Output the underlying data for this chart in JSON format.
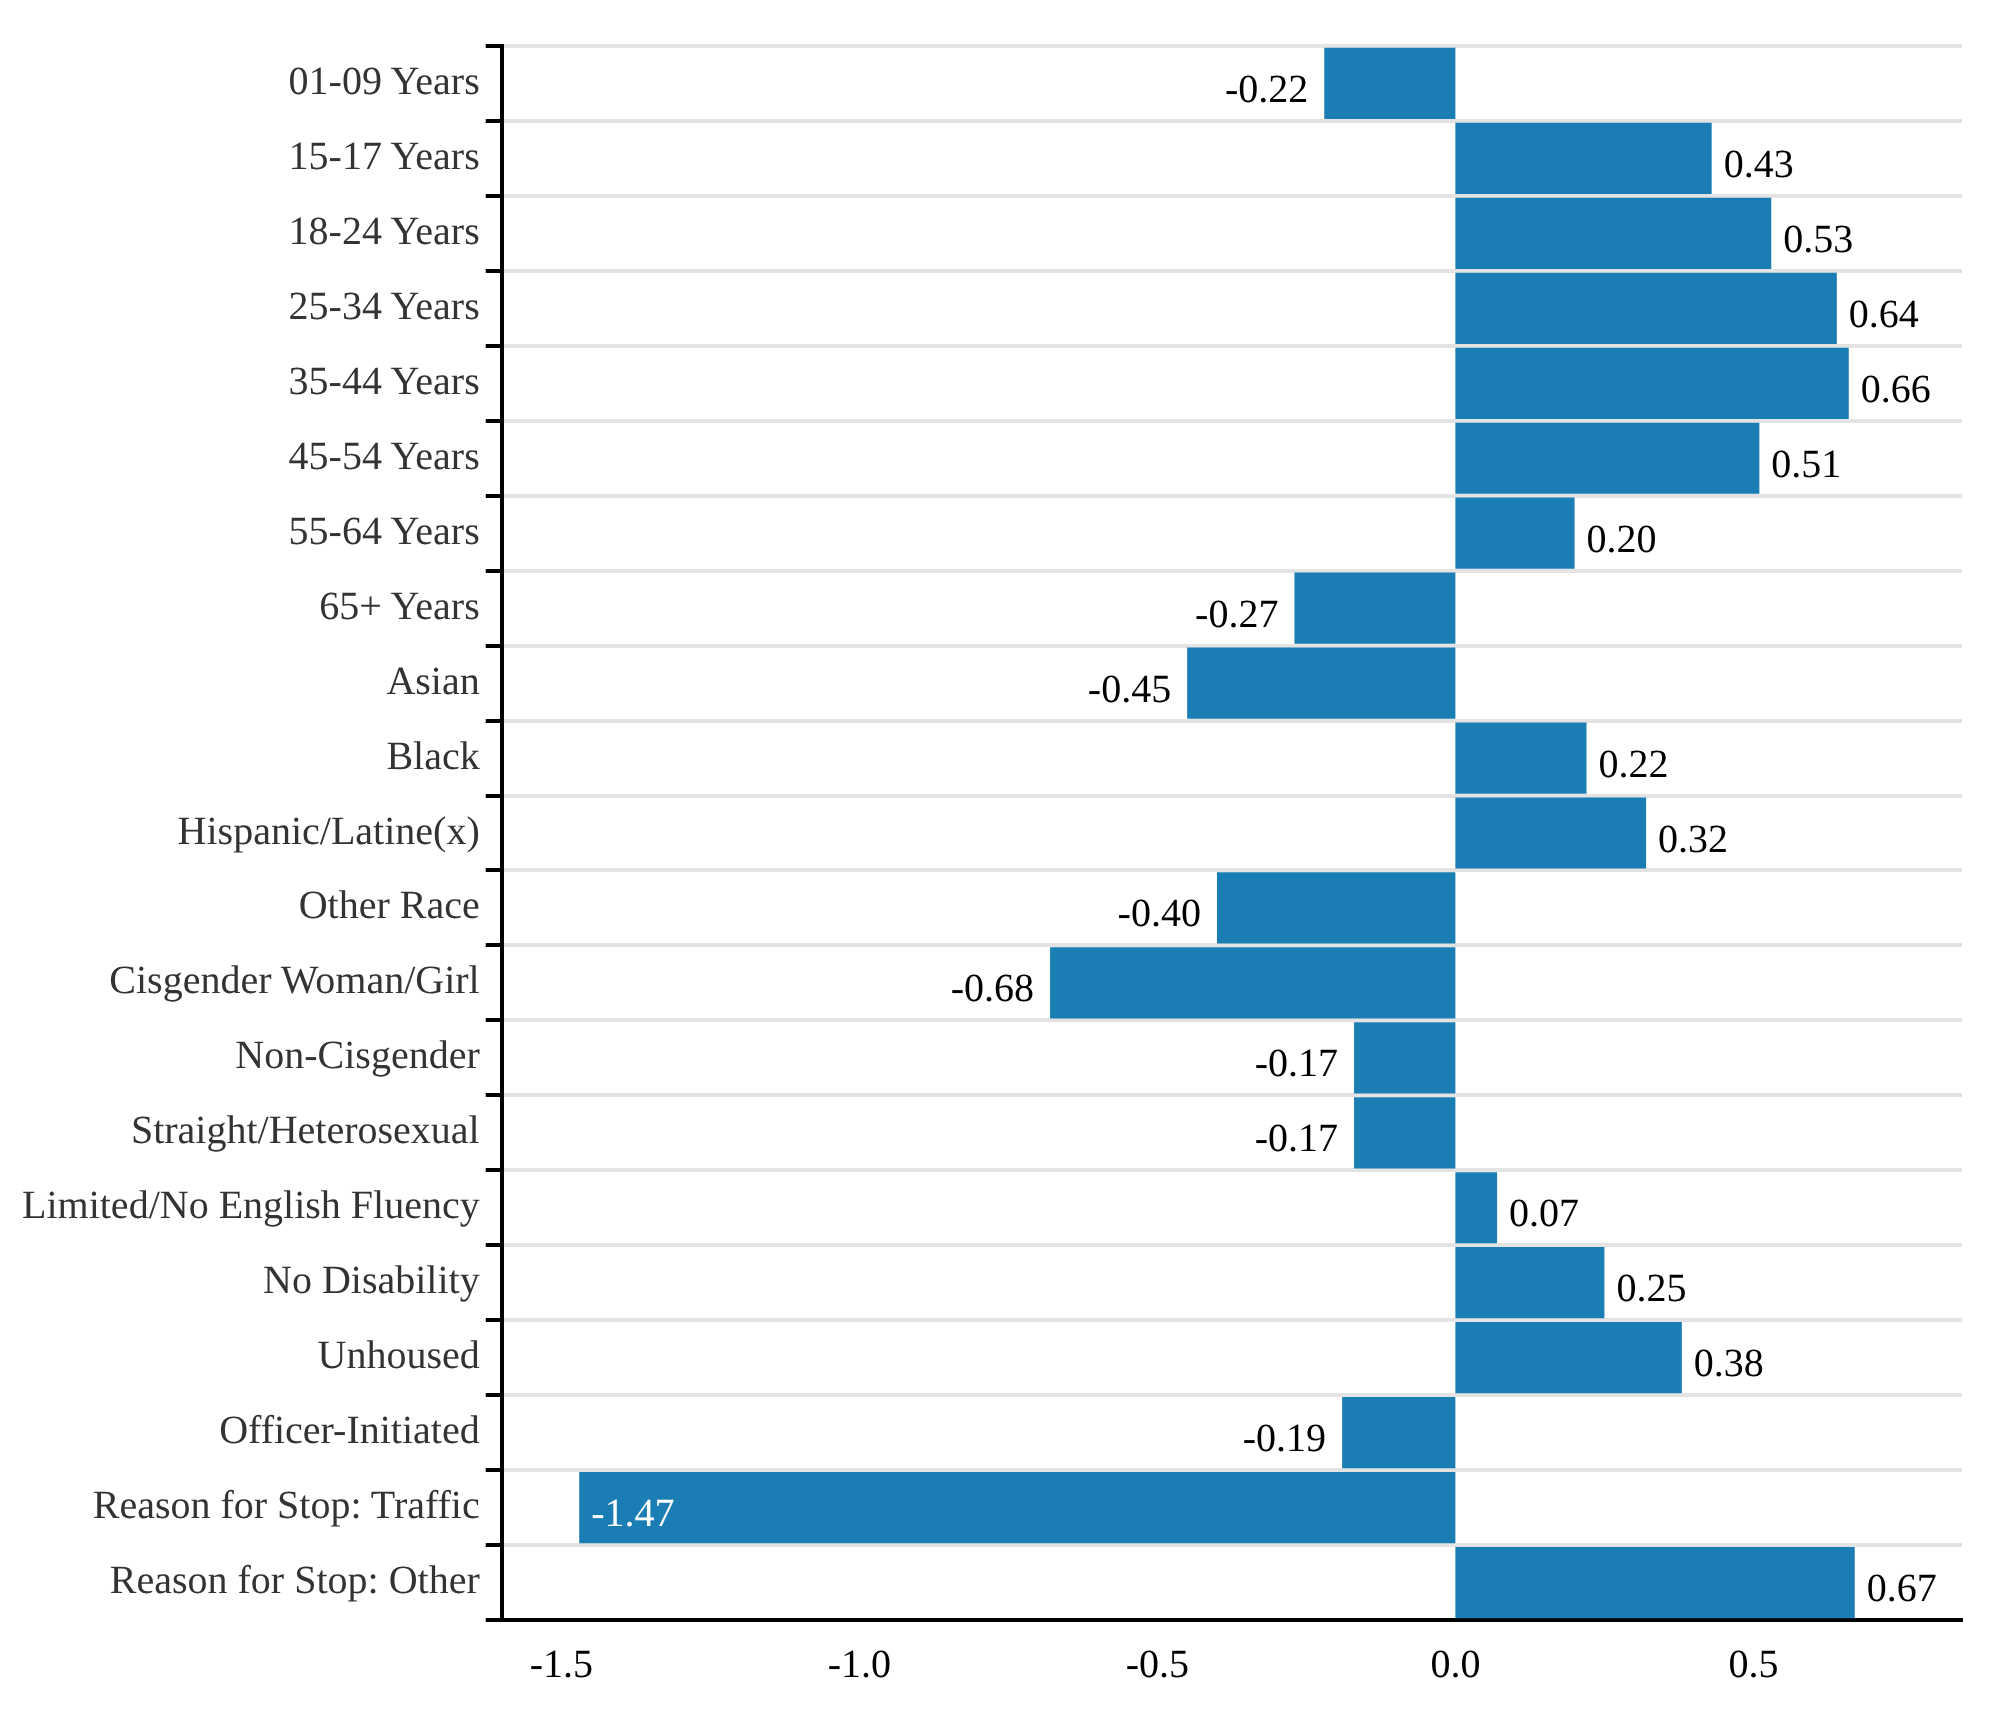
{
  "chart_data": {
    "type": "bar",
    "orientation": "horizontal",
    "categories": [
      "01-09 Years",
      "15-17 Years",
      "18-24 Years",
      "25-34 Years",
      "35-44 Years",
      "45-54 Years",
      "55-64 Years",
      "65+ Years",
      "Asian",
      "Black",
      "Hispanic/Latine(x)",
      "Other Race",
      "Cisgender Woman/Girl",
      "Non-Cisgender",
      "Straight/Heterosexual",
      "Limited/No English Fluency",
      "No Disability",
      "Unhoused",
      "Officer-Initiated",
      "Reason for Stop: Traffic",
      "Reason for Stop: Other"
    ],
    "values": [
      -0.22,
      0.43,
      0.53,
      0.64,
      0.66,
      0.51,
      0.2,
      -0.27,
      -0.45,
      0.22,
      0.32,
      -0.4,
      -0.68,
      -0.17,
      -0.17,
      0.07,
      0.25,
      0.38,
      -0.19,
      -1.47,
      0.67
    ],
    "value_labels": [
      "-0.22",
      "0.43",
      "0.53",
      "0.64",
      "0.66",
      "0.51",
      "0.20",
      "-0.27",
      "-0.45",
      "0.22",
      "0.32",
      "-0.40",
      "-0.68",
      "-0.17",
      "-0.17",
      "0.07",
      "0.25",
      "0.38",
      "-0.19",
      "-1.47",
      "0.67"
    ],
    "color": "#1a7db3",
    "xlim": [
      -1.6,
      0.85
    ],
    "xticks": [
      -1.5,
      {
        "value": -1,
        "label": "-1.0"
      },
      -0.5,
      {
        "value": 0,
        "label": "0.0"
      },
      0.5
    ],
    "grid": "y",
    "legend": false
  }
}
